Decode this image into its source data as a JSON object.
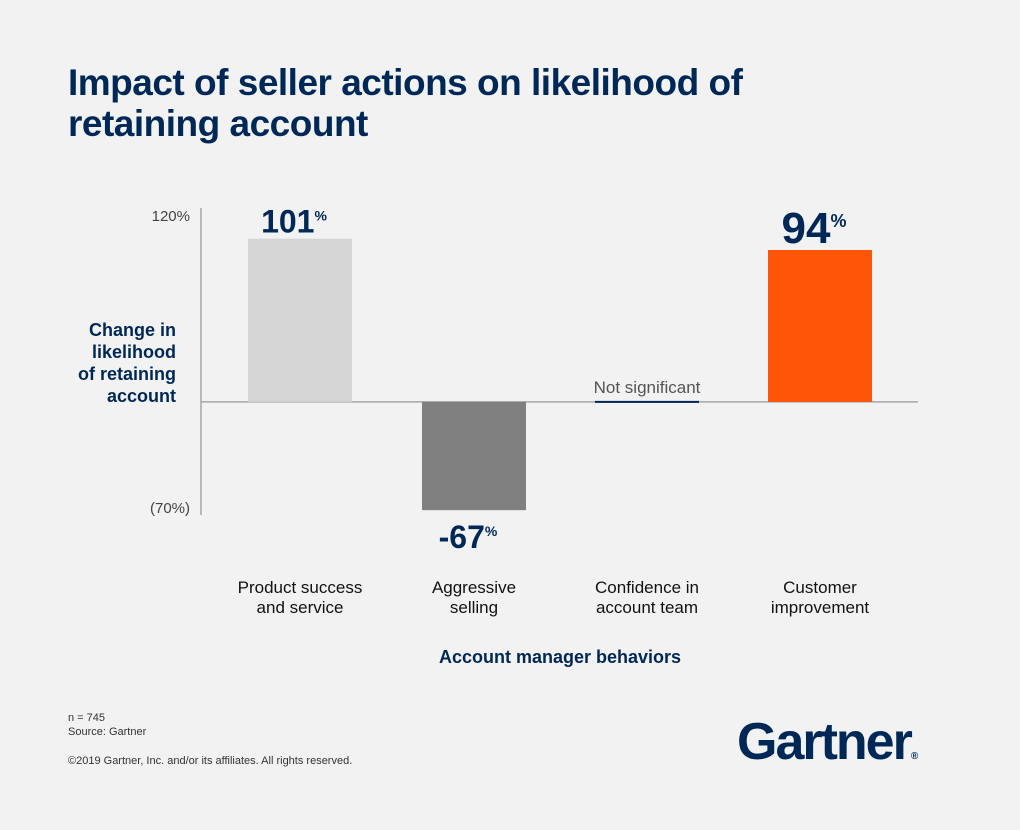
{
  "title": "Impact of seller actions on likelihood of retaining account",
  "colors": {
    "navy": "#002856",
    "bar_product": "#d5d5d5",
    "bar_aggressive": "#808080",
    "bar_confidence": "#002856",
    "bar_customer": "#ff5509",
    "axis": "#a6a6a6"
  },
  "chart_data": {
    "type": "bar",
    "categories": [
      "Product success and service",
      "Aggressive selling",
      "Confidence in account team",
      "Customer improvement"
    ],
    "category_lines": [
      [
        "Product success",
        "and service"
      ],
      [
        "Aggressive",
        "selling"
      ],
      [
        "Confidence in",
        "account team"
      ],
      [
        "Customer",
        "improvement"
      ]
    ],
    "values": [
      101,
      -67,
      0,
      94
    ],
    "value_labels": [
      "101",
      "-67",
      "",
      "94"
    ],
    "value_suffix": "%",
    "annotations": [
      "",
      "",
      "Not significant",
      ""
    ],
    "ylabel_lines": [
      "Change in",
      "likelihood",
      "of retaining",
      "account"
    ],
    "xlabel": "Account manager behaviors",
    "ylim": [
      -70,
      120
    ],
    "ytick_labels": [
      "120%",
      "(70%)"
    ],
    "legend": "none",
    "grid": false
  },
  "footer": {
    "n": "n = 745",
    "source": "Source: Gartner",
    "copyright": "©2019 Gartner, Inc. and/or its affiliates. All rights reserved."
  },
  "logo": {
    "text": "Gartner",
    "mark": "®"
  }
}
